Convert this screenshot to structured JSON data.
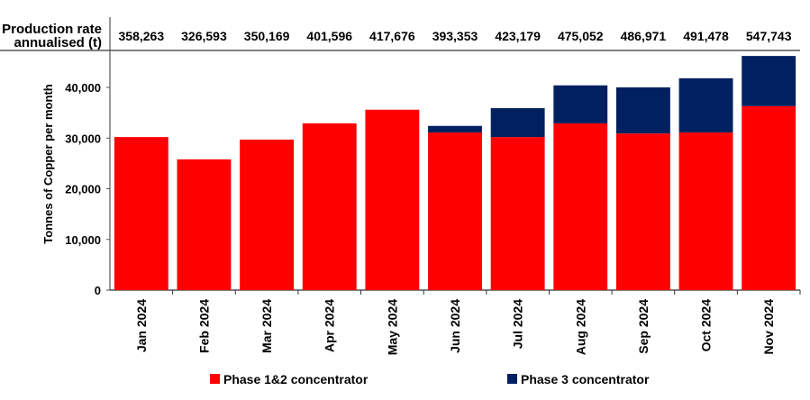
{
  "chart_data": {
    "type": "bar",
    "stacked": true,
    "title": "",
    "xlabel": "",
    "ylabel": "Tonnes of Copper per month",
    "ylim": [
      0,
      45000
    ],
    "yticks": [
      0,
      10000,
      20000,
      30000,
      40000
    ],
    "ytick_labels": [
      "0",
      "10,000",
      "20,000",
      "30,000",
      "40,000"
    ],
    "grid": false,
    "categories": [
      "Jan 2024",
      "Feb 2024",
      "Mar 2024",
      "Apr 2024",
      "May 2024",
      "Jun 2024",
      "Jul 2024",
      "Aug 2024",
      "Sep 2024",
      "Oct 2024",
      "Nov 2024"
    ],
    "series": [
      {
        "name": "Phase 1&2 concentrator",
        "color": "#ff0000",
        "values": [
          30200,
          25800,
          29700,
          32900,
          35600,
          31100,
          30200,
          32900,
          30900,
          31100,
          36300
        ]
      },
      {
        "name": "Phase 3 concentrator",
        "color": "#002060",
        "values": [
          0,
          0,
          0,
          0,
          0,
          1300,
          5700,
          7500,
          9100,
          10700,
          9900
        ]
      }
    ],
    "legend_position": "bottom",
    "header_row": {
      "label_line1": "Production rate",
      "label_line2": "annualised (t)",
      "values": [
        "358,263",
        "326,593",
        "350,169",
        "401,596",
        "417,676",
        "393,353",
        "423,179",
        "475,052",
        "486,971",
        "491,478",
        "547,743"
      ]
    }
  }
}
